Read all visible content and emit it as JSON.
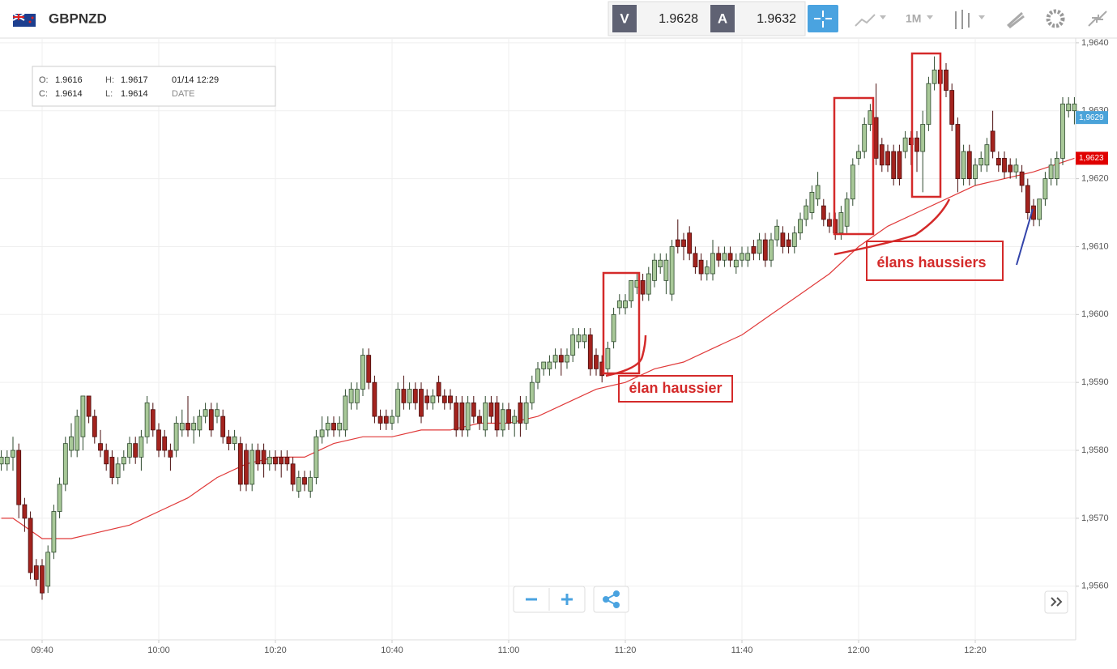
{
  "header": {
    "symbol": "GBPNZD",
    "sell_label": "V",
    "sell": 1.9628,
    "buy_label": "A",
    "buy": 1.9632,
    "timeframe": "1M"
  },
  "info_box": {
    "o_label": "O:",
    "o": 1.9616,
    "h_label": "H:",
    "h": 1.9617,
    "date": "01/14 12:29",
    "c_label": "C:",
    "c": 1.9614,
    "l_label": "L:",
    "l": 1.9614,
    "date_label": "DATE"
  },
  "chart_data": {
    "type": "candlestick",
    "x": [
      "09:33",
      "09:34",
      "09:35",
      "09:36",
      "09:37",
      "09:38",
      "09:39",
      "09:40",
      "09:41",
      "09:42",
      "09:43",
      "09:44",
      "09:45",
      "09:46",
      "09:47",
      "09:48",
      "09:49",
      "09:50",
      "09:51",
      "09:52",
      "09:53",
      "09:54",
      "09:55",
      "09:56",
      "09:57",
      "09:58",
      "09:59",
      "10:00",
      "10:01",
      "10:02",
      "10:03",
      "10:04",
      "10:05",
      "10:06",
      "10:07",
      "10:08",
      "10:09",
      "10:10",
      "10:11",
      "10:12",
      "10:13",
      "10:14",
      "10:15",
      "10:16",
      "10:17",
      "10:18",
      "10:19",
      "10:20",
      "10:21",
      "10:22",
      "10:23",
      "10:24",
      "10:25",
      "10:26",
      "10:27",
      "10:28",
      "10:29",
      "10:30",
      "10:31",
      "10:32",
      "10:33",
      "10:34",
      "10:35",
      "10:36",
      "10:37",
      "10:38",
      "10:39",
      "10:40",
      "10:41",
      "10:42",
      "10:43",
      "10:44",
      "10:45",
      "10:46",
      "10:47",
      "10:48",
      "10:49",
      "10:50",
      "10:51",
      "10:52",
      "10:53",
      "10:54",
      "10:55",
      "10:56",
      "10:57",
      "10:58",
      "10:59",
      "11:00",
      "11:01",
      "11:02",
      "11:03",
      "11:04",
      "11:05",
      "11:06",
      "11:07",
      "11:08",
      "11:09",
      "11:10",
      "11:11",
      "11:12",
      "11:13",
      "11:14",
      "11:15",
      "11:16",
      "11:17",
      "11:18",
      "11:19",
      "11:20",
      "11:21",
      "11:22",
      "11:23",
      "11:24",
      "11:25",
      "11:26",
      "11:27",
      "11:28",
      "11:29",
      "11:30",
      "11:31",
      "11:32",
      "11:33",
      "11:34",
      "11:35",
      "11:36",
      "11:37",
      "11:38",
      "11:39",
      "11:40",
      "11:41",
      "11:42",
      "11:43",
      "11:44",
      "11:45",
      "11:46",
      "11:47",
      "11:48",
      "11:49",
      "11:50",
      "11:51",
      "11:52",
      "11:53",
      "11:54",
      "11:55",
      "11:56",
      "11:57",
      "11:58",
      "11:59",
      "12:00",
      "12:01",
      "12:02",
      "12:03",
      "12:04",
      "12:05",
      "12:06",
      "12:07",
      "12:08",
      "12:09",
      "12:10",
      "12:11",
      "12:12",
      "12:13",
      "12:14",
      "12:15",
      "12:16",
      "12:17",
      "12:18",
      "12:19",
      "12:20",
      "12:21",
      "12:22",
      "12:23",
      "12:24",
      "12:25",
      "12:26",
      "12:27",
      "12:28",
      "12:29",
      "12:30",
      "12:31",
      "12:32",
      "12:33",
      "12:34",
      "12:35",
      "12:36",
      "12:37"
    ],
    "open": [
      1.9578,
      1.9578,
      1.9579,
      1.958,
      1.9572,
      1.957,
      1.9563,
      1.9563,
      1.956,
      1.9565,
      1.9571,
      1.9575,
      1.958,
      1.958,
      1.9582,
      1.9588,
      1.9585,
      1.9581,
      1.958,
      1.9579,
      1.9576,
      1.9578,
      1.9579,
      1.9581,
      1.9579,
      1.9582,
      1.9586,
      1.9583,
      1.9582,
      1.958,
      1.958,
      1.9583,
      1.9584,
      1.9583,
      1.9583,
      1.9585,
      1.9586,
      1.9585,
      1.9585,
      1.9582,
      1.9581,
      1.9581,
      1.958,
      1.9575,
      1.958,
      1.958,
      1.9578,
      1.9579,
      1.9579,
      1.9579,
      1.9578,
      1.9574,
      1.9576,
      1.9574,
      1.9576,
      1.9582,
      1.9583,
      1.9584,
      1.9583,
      1.9583,
      1.9587,
      1.9587,
      1.9589,
      1.9594,
      1.959,
      1.9585,
      1.9585,
      1.9584,
      1.9585,
      1.9589,
      1.9587,
      1.9589,
      1.9589,
      1.9588,
      1.9587,
      1.959,
      1.9588,
      1.9588,
      1.9587,
      1.9587,
      1.9583,
      1.9587,
      1.9585,
      1.9583,
      1.9587,
      1.9587,
      1.9583,
      1.9586,
      1.9584,
      1.9587,
      1.9584,
      1.9587,
      1.959,
      1.9592,
      1.9592,
      1.9593,
      1.9594,
      1.9593,
      1.9594,
      1.9596,
      1.9596,
      1.9597,
      1.9594,
      1.9593,
      1.9592,
      1.9596,
      1.9601,
      1.9601,
      1.9602,
      1.9604,
      1.9605,
      1.9603,
      1.9605,
      1.9607,
      1.9605,
      1.9603,
      1.9611,
      1.9611,
      1.9612,
      1.9609,
      1.9608,
      1.9606,
      1.9606,
      1.9609,
      1.9608,
      1.9609,
      1.9607,
      1.9608,
      1.9608,
      1.961,
      1.9609,
      1.9611,
      1.9608,
      1.9611,
      1.9612,
      1.9611,
      1.961,
      1.9612,
      1.9614,
      1.9615,
      1.9617,
      1.9616,
      1.9614,
      1.9614,
      1.9612,
      1.9613,
      1.9617,
      1.9623,
      1.9624,
      1.9628,
      1.9629,
      1.9625,
      1.9624,
      1.9624,
      1.9624,
      1.9624,
      1.9626,
      1.9626,
      1.9624,
      1.9628,
      1.9634,
      1.9636,
      1.9636,
      1.9633,
      1.9628,
      1.962,
      1.9624,
      1.962,
      1.9622,
      1.9622,
      1.9627,
      1.9623,
      1.9623,
      1.9622,
      1.9621,
      1.9621,
      1.9619,
      1.9616,
      1.9614,
      1.9617,
      1.962,
      1.962,
      1.9623,
      1.963,
      1.963
    ],
    "high": [
      1.958,
      1.958,
      1.9582,
      1.9581,
      1.9573,
      1.9571,
      1.9564,
      1.9564,
      1.9566,
      1.9572,
      1.9576,
      1.9582,
      1.9584,
      1.9586,
      1.9588,
      1.9588,
      1.9586,
      1.9583,
      1.9581,
      1.958,
      1.9579,
      1.958,
      1.9582,
      1.9582,
      1.9583,
      1.9588,
      1.9587,
      1.9584,
      1.9583,
      1.9581,
      1.9585,
      1.9586,
      1.9588,
      1.9585,
      1.9586,
      1.9587,
      1.9587,
      1.9587,
      1.9586,
      1.9583,
      1.9583,
      1.9582,
      1.9581,
      1.9581,
      1.9581,
      1.9581,
      1.958,
      1.958,
      1.958,
      1.958,
      1.9579,
      1.9577,
      1.9577,
      1.9577,
      1.9583,
      1.9585,
      1.9585,
      1.9585,
      1.9585,
      1.9589,
      1.959,
      1.959,
      1.9595,
      1.9595,
      1.9591,
      1.9586,
      1.9586,
      1.9586,
      1.959,
      1.9591,
      1.959,
      1.959,
      1.959,
      1.9589,
      1.9589,
      1.9591,
      1.9589,
      1.9589,
      1.9588,
      1.9588,
      1.9588,
      1.9588,
      1.9586,
      1.9588,
      1.9588,
      1.9588,
      1.9587,
      1.9587,
      1.9586,
      1.9588,
      1.9588,
      1.9591,
      1.9593,
      1.9593,
      1.9594,
      1.9595,
      1.9595,
      1.9595,
      1.9598,
      1.9598,
      1.9598,
      1.9598,
      1.9595,
      1.9594,
      1.9596,
      1.9601,
      1.9603,
      1.9603,
      1.9605,
      1.9606,
      1.9606,
      1.9607,
      1.9609,
      1.9609,
      1.9609,
      1.9611,
      1.9614,
      1.9612,
      1.9613,
      1.961,
      1.9609,
      1.9608,
      1.9611,
      1.961,
      1.961,
      1.961,
      1.9609,
      1.961,
      1.961,
      1.9611,
      1.9612,
      1.9612,
      1.9612,
      1.9614,
      1.9613,
      1.9612,
      1.9613,
      1.9615,
      1.9617,
      1.9619,
      1.9621,
      1.9617,
      1.9615,
      1.9615,
      1.9616,
      1.9618,
      1.9623,
      1.9625,
      1.9629,
      1.9631,
      1.9634,
      1.9626,
      1.9625,
      1.9625,
      1.9625,
      1.9627,
      1.9627,
      1.9627,
      1.963,
      1.9635,
      1.9638,
      1.9637,
      1.9637,
      1.9634,
      1.9629,
      1.9625,
      1.9625,
      1.9623,
      1.9624,
      1.9626,
      1.963,
      1.9624,
      1.9624,
      1.9623,
      1.9623,
      1.9622,
      1.962,
      1.9617,
      1.9617,
      1.9621,
      1.9623,
      1.9624,
      1.9632,
      1.9632,
      1.9632
    ],
    "low": [
      1.9577,
      1.9577,
      1.9577,
      1.957,
      1.9568,
      1.9561,
      1.956,
      1.9558,
      1.9559,
      1.9564,
      1.957,
      1.9574,
      1.9579,
      1.9579,
      1.958,
      1.9584,
      1.9581,
      1.9579,
      1.9577,
      1.9575,
      1.9575,
      1.9577,
      1.9578,
      1.9578,
      1.9577,
      1.9581,
      1.9582,
      1.9579,
      1.9579,
      1.9577,
      1.9579,
      1.9582,
      1.9582,
      1.9581,
      1.9582,
      1.9584,
      1.9582,
      1.9584,
      1.9581,
      1.958,
      1.958,
      1.9574,
      1.9574,
      1.9574,
      1.9577,
      1.9576,
      1.9577,
      1.9577,
      1.9576,
      1.9577,
      1.9574,
      1.9573,
      1.9574,
      1.9573,
      1.9575,
      1.9581,
      1.9582,
      1.9582,
      1.9582,
      1.9582,
      1.9586,
      1.9586,
      1.9588,
      1.9589,
      1.9584,
      1.9583,
      1.9583,
      1.9583,
      1.9584,
      1.9586,
      1.9586,
      1.9586,
      1.9584,
      1.9586,
      1.9586,
      1.9587,
      1.9586,
      1.9586,
      1.9582,
      1.9582,
      1.9582,
      1.9584,
      1.9583,
      1.9582,
      1.9584,
      1.9582,
      1.9582,
      1.9583,
      1.9582,
      1.9582,
      1.9583,
      1.9586,
      1.9589,
      1.9591,
      1.9591,
      1.9592,
      1.9591,
      1.9592,
      1.9593,
      1.9595,
      1.9595,
      1.9591,
      1.9591,
      1.959,
      1.9591,
      1.9595,
      1.96,
      1.96,
      1.9601,
      1.9603,
      1.9602,
      1.9602,
      1.9604,
      1.9606,
      1.9603,
      1.9602,
      1.9609,
      1.9608,
      1.9608,
      1.9606,
      1.9605,
      1.9605,
      1.9605,
      1.9607,
      1.9607,
      1.9607,
      1.9606,
      1.9607,
      1.9607,
      1.9608,
      1.9608,
      1.9607,
      1.9607,
      1.961,
      1.9609,
      1.9609,
      1.9609,
      1.9611,
      1.9613,
      1.9614,
      1.9616,
      1.9613,
      1.9612,
      1.9611,
      1.9611,
      1.9612,
      1.9616,
      1.9622,
      1.9623,
      1.9627,
      1.9622,
      1.9621,
      1.9621,
      1.9619,
      1.9619,
      1.9623,
      1.9622,
      1.9621,
      1.9618,
      1.9627,
      1.9633,
      1.9633,
      1.9632,
      1.9627,
      1.9618,
      1.9619,
      1.9619,
      1.9619,
      1.9621,
      1.9621,
      1.9623,
      1.9621,
      1.962,
      1.962,
      1.962,
      1.9618,
      1.9614,
      1.9613,
      1.9613,
      1.9616,
      1.9619,
      1.9619,
      1.9622,
      1.9629,
      1.9628
    ],
    "close": [
      1.9579,
      1.9579,
      1.958,
      1.9572,
      1.957,
      1.9562,
      1.9561,
      1.9559,
      1.9565,
      1.9571,
      1.9575,
      1.9581,
      1.9582,
      1.9585,
      1.9588,
      1.9585,
      1.9582,
      1.958,
      1.9578,
      1.9576,
      1.9578,
      1.9579,
      1.9581,
      1.9579,
      1.9582,
      1.9587,
      1.9583,
      1.958,
      1.958,
      1.9579,
      1.9584,
      1.9584,
      1.9583,
      1.9584,
      1.9585,
      1.9586,
      1.9583,
      1.9586,
      1.9582,
      1.9581,
      1.9582,
      1.9575,
      1.9575,
      1.958,
      1.9578,
      1.9578,
      1.9579,
      1.9578,
      1.9578,
      1.9578,
      1.9575,
      1.9576,
      1.9575,
      1.9576,
      1.9582,
      1.9583,
      1.9584,
      1.9583,
      1.9584,
      1.9588,
      1.9589,
      1.9589,
      1.9594,
      1.959,
      1.9585,
      1.9584,
      1.9584,
      1.9585,
      1.9589,
      1.9587,
      1.9589,
      1.9587,
      1.9585,
      1.9587,
      1.9588,
      1.9588,
      1.9587,
      1.9587,
      1.9583,
      1.9583,
      1.9587,
      1.9585,
      1.9584,
      1.9587,
      1.9585,
      1.9583,
      1.9586,
      1.9584,
      1.9585,
      1.9584,
      1.9587,
      1.959,
      1.9592,
      1.9593,
      1.9593,
      1.9594,
      1.9593,
      1.9594,
      1.9597,
      1.9597,
      1.9597,
      1.9592,
      1.9592,
      1.9591,
      1.9595,
      1.96,
      1.9602,
      1.9602,
      1.9605,
      1.9605,
      1.9603,
      1.9606,
      1.9608,
      1.9608,
      1.9608,
      1.961,
      1.961,
      1.961,
      1.9609,
      1.9607,
      1.9606,
      1.9607,
      1.9609,
      1.9608,
      1.9609,
      1.9608,
      1.9608,
      1.9609,
      1.9609,
      1.9609,
      1.9611,
      1.9608,
      1.9611,
      1.9613,
      1.961,
      1.961,
      1.9612,
      1.9614,
      1.9616,
      1.9618,
      1.9619,
      1.9614,
      1.9613,
      1.9612,
      1.9615,
      1.9617,
      1.9622,
      1.9624,
      1.9628,
      1.963,
      1.9623,
      1.9622,
      1.9622,
      1.962,
      1.962,
      1.9626,
      1.9625,
      1.9624,
      1.9628,
      1.9634,
      1.9636,
      1.9634,
      1.9633,
      1.9628,
      1.962,
      1.9624,
      1.962,
      1.9622,
      1.9623,
      1.9625,
      1.9624,
      1.9622,
      1.9621,
      1.9621,
      1.9622,
      1.9619,
      1.9615,
      1.9614,
      1.9617,
      1.962,
      1.9622,
      1.9623,
      1.9631,
      1.9631,
      1.9631
    ],
    "up_color": "#a8c898",
    "down_color": "#a3231e",
    "moving_average": {
      "color": "#e03a3a",
      "x": [
        "09:33",
        "09:35",
        "09:40",
        "09:45",
        "09:50",
        "09:55",
        "10:00",
        "10:05",
        "10:10",
        "10:15",
        "10:20",
        "10:25",
        "10:30",
        "10:35",
        "10:40",
        "10:45",
        "10:50",
        "10:55",
        "11:00",
        "11:05",
        "11:10",
        "11:15",
        "11:20",
        "11:25",
        "11:30",
        "11:35",
        "11:40",
        "11:45",
        "11:50",
        "11:55",
        "12:00",
        "12:05",
        "12:10",
        "12:15",
        "12:20",
        "12:25",
        "12:30",
        "12:37"
      ],
      "values": [
        1.957,
        1.957,
        1.9567,
        1.9567,
        1.9568,
        1.9569,
        1.9571,
        1.9573,
        1.9576,
        1.9578,
        1.9579,
        1.9579,
        1.9581,
        1.9582,
        1.9582,
        1.9583,
        1.9583,
        1.9584,
        1.9584,
        1.9585,
        1.9587,
        1.9589,
        1.959,
        1.9592,
        1.9593,
        1.9595,
        1.9597,
        1.96,
        1.9603,
        1.9606,
        1.961,
        1.9613,
        1.9615,
        1.9617,
        1.9619,
        1.962,
        1.9621,
        1.9623
      ]
    },
    "ylim": [
      1.95521,
      1.96407
    ],
    "yticks": [
      {
        "value": 1.956,
        "label": "1,9560"
      },
      {
        "value": 1.957,
        "label": "1,9570"
      },
      {
        "value": 1.958,
        "label": "1,9580"
      },
      {
        "value": 1.959,
        "label": "1,9590"
      },
      {
        "value": 1.96,
        "label": "1,9600"
      },
      {
        "value": 1.961,
        "label": "1,9610"
      },
      {
        "value": 1.962,
        "label": "1,9620"
      },
      {
        "value": 1.963,
        "label": "1,9630"
      },
      {
        "value": 1.964,
        "label": "1,9640"
      }
    ],
    "xticks": [
      "09:40",
      "10:00",
      "10:20",
      "10:40",
      "11:00",
      "11:20",
      "11:40",
      "12:00",
      "12:20"
    ],
    "grid": true,
    "price_tags": [
      {
        "value": 1.9629,
        "label": "1,9629",
        "color": "#4aa3d9"
      },
      {
        "value": 1.9623,
        "label": "1,9623",
        "color": "#e00000"
      }
    ],
    "annotations": [
      "élan haussier",
      "élans haussiers"
    ]
  }
}
